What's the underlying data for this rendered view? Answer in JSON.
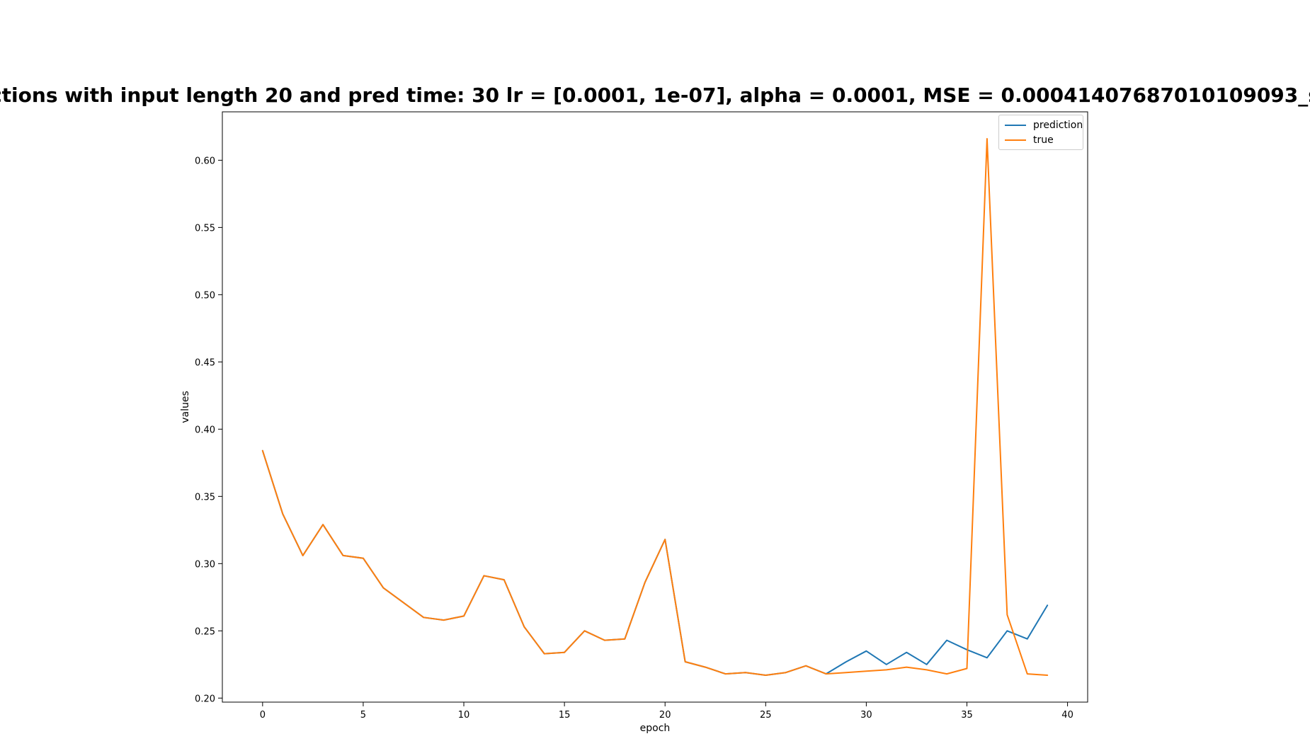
{
  "chart_data": {
    "type": "line",
    "title": "ctions with input length 20 and pred time: 30 lr = [0.0001, 1e-07], alpha = 0.0001, MSE = 0.00041407687010109093_s",
    "xlabel": "epoch",
    "ylabel": "values",
    "xlim": [
      -2,
      41
    ],
    "ylim": [
      0.197,
      0.636
    ],
    "xticks": [
      0,
      5,
      10,
      15,
      20,
      25,
      30,
      35,
      40
    ],
    "xtick_labels": [
      "0",
      "5",
      "10",
      "15",
      "20",
      "25",
      "30",
      "35",
      "40"
    ],
    "yticks": [
      0.2,
      0.25,
      0.3,
      0.35,
      0.4,
      0.45,
      0.5,
      0.55,
      0.6
    ],
    "ytick_labels": [
      "0.20",
      "0.25",
      "0.30",
      "0.35",
      "0.40",
      "0.45",
      "0.50",
      "0.55",
      "0.60"
    ],
    "grid": false,
    "legend_position": "upper-right",
    "x": [
      0,
      1,
      2,
      3,
      4,
      5,
      6,
      7,
      8,
      9,
      10,
      11,
      12,
      13,
      14,
      15,
      16,
      17,
      18,
      19,
      20,
      21,
      22,
      23,
      24,
      25,
      26,
      27,
      28,
      29,
      30,
      31,
      32,
      33,
      34,
      35,
      36,
      37,
      38,
      39
    ],
    "series": [
      {
        "name": "prediction",
        "color": "#1f77b4",
        "values": [
          0.384,
          0.337,
          0.306,
          0.329,
          0.306,
          0.304,
          0.282,
          0.271,
          0.26,
          0.258,
          0.261,
          0.291,
          0.288,
          0.253,
          0.233,
          0.234,
          0.25,
          0.243,
          0.244,
          0.286,
          0.318,
          0.227,
          0.223,
          0.218,
          0.219,
          0.217,
          0.219,
          0.224,
          0.218,
          0.227,
          0.235,
          0.225,
          0.234,
          0.225,
          0.243,
          0.236,
          0.23,
          0.25,
          0.244,
          0.269
        ]
      },
      {
        "name": "true",
        "color": "#ff7f0e",
        "values": [
          0.384,
          0.337,
          0.306,
          0.329,
          0.306,
          0.304,
          0.282,
          0.271,
          0.26,
          0.258,
          0.261,
          0.291,
          0.288,
          0.253,
          0.233,
          0.234,
          0.25,
          0.243,
          0.244,
          0.286,
          0.318,
          0.227,
          0.223,
          0.218,
          0.219,
          0.217,
          0.219,
          0.224,
          0.218,
          0.219,
          0.22,
          0.221,
          0.223,
          0.221,
          0.218,
          0.222,
          0.616,
          0.262,
          0.218,
          0.217
        ]
      }
    ]
  }
}
